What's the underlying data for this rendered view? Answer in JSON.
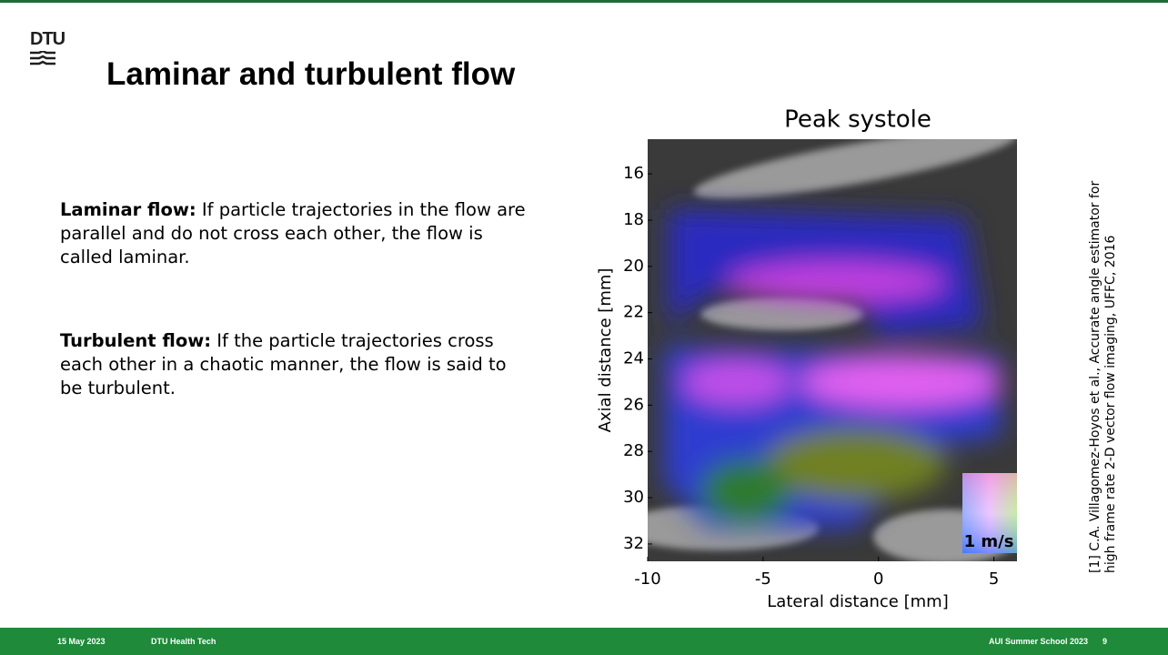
{
  "header": {
    "logo": "DTU",
    "title": "Laminar and turbulent flow"
  },
  "body": {
    "paragraphs": [
      {
        "label": "Laminar flow:",
        "text": "If particle trajectories in the flow are parallel and do not cross each other, the flow is called laminar."
      },
      {
        "label": "Turbulent flow:",
        "text": "If the particle trajectories cross each other in a chaotic manner, the flow is said to be turbulent."
      }
    ]
  },
  "figure": {
    "title": "Peak systole",
    "xlabel": "Lateral distance [mm]",
    "ylabel": "Axial distance [mm]",
    "xlim": [
      -10,
      6
    ],
    "ylim": [
      14.5,
      32.75
    ],
    "xticks": [
      -10,
      -5,
      0,
      5
    ],
    "yticks": [
      16,
      18,
      20,
      22,
      24,
      26,
      28,
      30,
      32
    ],
    "legend": "1 m/s"
  },
  "citation": [
    "[1] C.A. Villagomez-Hoyos et al., Accurate angle estimator for",
    "high frame rate 2-D vector flow imaging, UFFC, 2016"
  ],
  "footer": {
    "date": "15 May 2023",
    "department": "DTU Health Tech",
    "event": "AUI Summer School 2023",
    "page": "9"
  }
}
